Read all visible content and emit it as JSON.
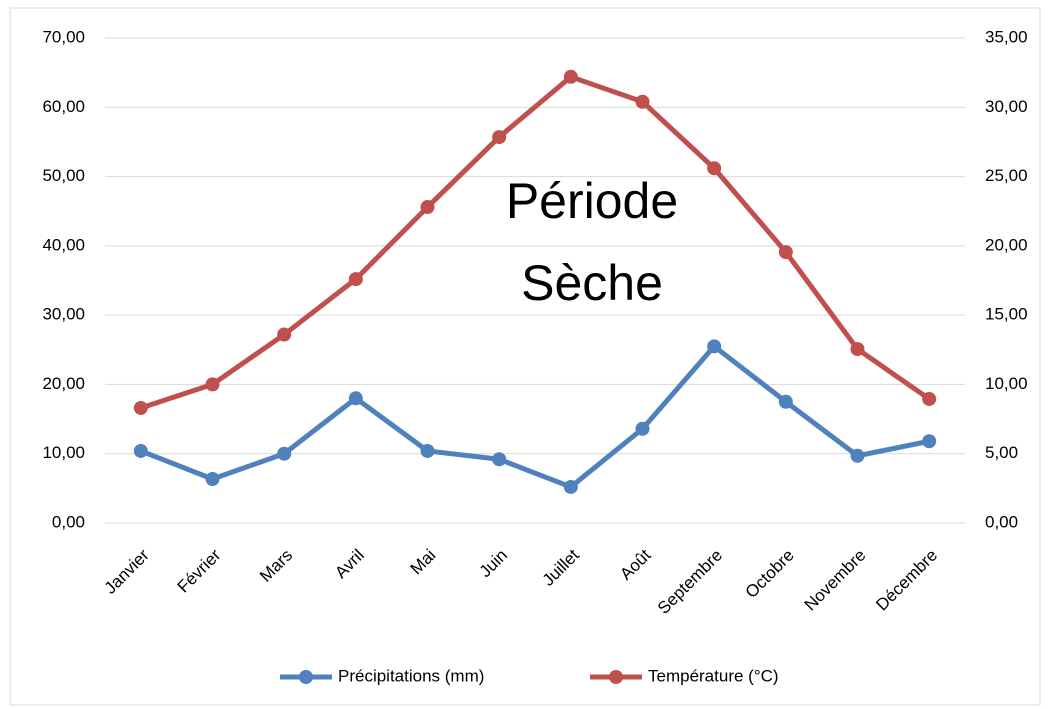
{
  "chart_data": {
    "type": "line",
    "annotation": [
      "Période",
      "Sèche"
    ],
    "categories": [
      "Janvier",
      "Février",
      "Mars",
      "Avril",
      "Mai",
      "Juin",
      "Juillet",
      "Août",
      "Septembre",
      "Octobre",
      "Novembre",
      "Décembre"
    ],
    "series": [
      {
        "name": "Précipitations (mm)",
        "color": "#4f81bd",
        "values": [
          10.4,
          6.35,
          10.0,
          18.0,
          10.4,
          9.2,
          5.2,
          13.6,
          25.5,
          17.5,
          9.7,
          11.8
        ]
      },
      {
        "name": "Température (°C)",
        "color": "#c0504d",
        "axis": "y2",
        "values": [
          8.3,
          10.0,
          13.6,
          17.6,
          22.8,
          27.85,
          32.2,
          30.4,
          25.6,
          19.55,
          12.55,
          8.95
        ]
      }
    ],
    "ylim": [
      0,
      70
    ],
    "yticks": [
      {
        "value": 0,
        "label": "0,00"
      },
      {
        "value": 10,
        "label": "10,00"
      },
      {
        "value": 20,
        "label": "20,00"
      },
      {
        "value": 30,
        "label": "30,00"
      },
      {
        "value": 40,
        "label": "40,00"
      },
      {
        "value": 50,
        "label": "50,00"
      },
      {
        "value": 60,
        "label": "60,00"
      },
      {
        "value": 70,
        "label": "70,00"
      }
    ],
    "y2lim": [
      0,
      35
    ],
    "y2ticks": [
      {
        "value": 0,
        "label": "0,00"
      },
      {
        "value": 5,
        "label": "5,00"
      },
      {
        "value": 10,
        "label": "10,00"
      },
      {
        "value": 15,
        "label": "15,00"
      },
      {
        "value": 20,
        "label": "20,00"
      },
      {
        "value": 25,
        "label": "25,00"
      },
      {
        "value": 30,
        "label": "30,00"
      },
      {
        "value": 35,
        "label": "35,00"
      }
    ],
    "grid": true,
    "legend": "bottom"
  }
}
